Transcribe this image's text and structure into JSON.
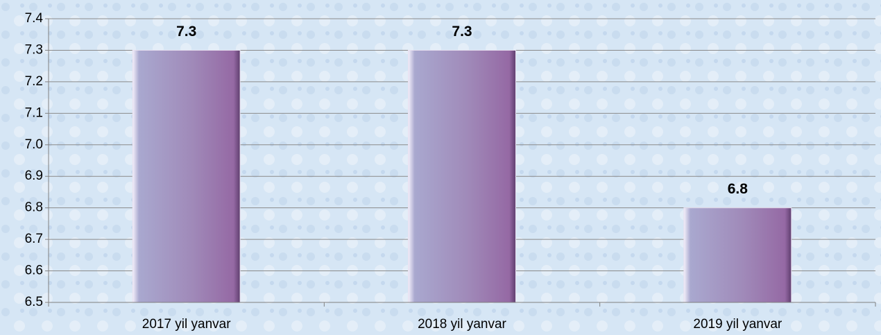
{
  "chart_data": {
    "type": "bar",
    "categories": [
      "2017 yil yanvar",
      "2018 yil yanvar",
      "2019 yil yanvar"
    ],
    "values": [
      7.3,
      7.3,
      6.8
    ],
    "color": "#9c84b8",
    "ylim": [
      6.5,
      7.4
    ],
    "yticks": [
      6.5,
      6.6,
      6.7,
      6.8,
      6.9,
      {
        "value": 7,
        "label": "7.0"
      },
      7.1,
      7.2,
      7.3,
      7.4
    ],
    "grid": true
  }
}
